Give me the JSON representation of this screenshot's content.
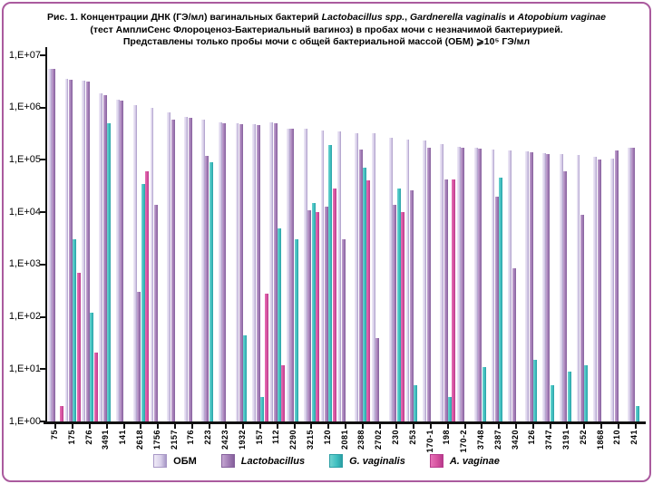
{
  "title": {
    "line1_pre": "Рис. 1. Концентрации ДНК (ГЭ/мл) вагинальных бактерий ",
    "species1": "Lactobacillus spp.",
    "sep1": ", ",
    "species2": "Gardnerella vaginalis",
    "sep2": " и ",
    "species3": "Atopobium vaginae",
    "line2": "(тест АмплиСенс Флороценоз-Бактериальный вагиноз) в пробах мочи с незначимой бактериурией.",
    "line3": "Представлены только пробы мочи с общей бактериальной массой (ОБМ) ⩾10⁵ ГЭ/мл"
  },
  "colors": {
    "obm_light": "#efeaf7",
    "obm": "#d9d0ea",
    "obm_dark": "#a898c6",
    "lacto_light": "#c4a6d2",
    "lacto": "#a27cb5",
    "lacto_dark": "#85609c",
    "gvag_light": "#6fd2cf",
    "gvag": "#3fc0c0",
    "gvag_dark": "#2b9fa4",
    "avag_light": "#e670b6",
    "avag": "#d6529f",
    "avag_dark": "#b83a8c",
    "axis": "#111111",
    "frame_border": "#aa5a9e"
  },
  "chart_data": {
    "type": "bar",
    "y_scale": "log10",
    "ylim": [
      1,
      10000000
    ],
    "grid": false,
    "legend_position": "bottom",
    "y_tick_labels": [
      "1,E+00",
      "1,E+01",
      "1,E+02",
      "1,E+03",
      "1,E+04",
      "1,E+05",
      "1,E+06",
      "1,E+07"
    ],
    "categories": [
      "75",
      "175",
      "276",
      "3491",
      "141",
      "2618",
      "1756",
      "2157",
      "176",
      "223",
      "2423",
      "1932",
      "157",
      "112",
      "2290",
      "3215",
      "120",
      "2081",
      "2388",
      "2702",
      "230",
      "253",
      "170-1",
      "198",
      "170-2",
      "3748",
      "2387",
      "3420",
      "126",
      "3747",
      "3191",
      "252",
      "1868",
      "210",
      "241"
    ],
    "series": [
      {
        "name": "ОБМ",
        "key": "obm",
        "values": [
          5500000.0,
          3500000.0,
          3300000.0,
          1900000.0,
          1400000.0,
          1100000.0,
          1000000.0,
          800000.0,
          660000.0,
          600000.0,
          520000.0,
          500000.0,
          490000.0,
          530000.0,
          400000.0,
          390000.0,
          370000.0,
          350000.0,
          330000.0,
          320000.0,
          270000.0,
          250000.0,
          240000.0,
          200000.0,
          175000.0,
          170000.0,
          160000.0,
          150000.0,
          145000.0,
          135000.0,
          130000.0,
          125000.0,
          115000.0,
          105000.0,
          170000.0
        ]
      },
      {
        "name": "Lactobacillus",
        "key": "lacto",
        "values": [
          5400000.0,
          3400000.0,
          3200000.0,
          1700000.0,
          1350000.0,
          300.0,
          14000.0,
          600000.0,
          640000.0,
          120000.0,
          500000.0,
          480000.0,
          470000.0,
          510000.0,
          390000.0,
          11000.0,
          13000.0,
          3000.0,
          160000.0,
          40.0,
          14000.0,
          26000.0,
          170000.0,
          43000.0,
          170000.0,
          165000.0,
          20000.0,
          850.0,
          140000.0,
          130000.0,
          60000.0,
          9000.0,
          100000.0,
          150000.0,
          170000.0
        ]
      },
      {
        "name": "G. vaginalis",
        "key": "gvag",
        "values": [
          null,
          3000.0,
          120.0,
          500000.0,
          null,
          35000.0,
          null,
          null,
          null,
          90000.0,
          null,
          45.0,
          3.0,
          5000.0,
          3000.0,
          15000.0,
          190000.0,
          null,
          70000.0,
          null,
          29000.0,
          5.0,
          null,
          3.0,
          null,
          11.0,
          45000.0,
          null,
          15.0,
          5.0,
          9.0,
          12.0,
          null,
          null,
          2.0
        ]
      },
      {
        "name": "A. vaginae",
        "key": "avag",
        "values": [
          2.0,
          700.0,
          21.0,
          null,
          null,
          60000.0,
          null,
          null,
          null,
          null,
          null,
          null,
          280.0,
          12.0,
          null,
          10000.0,
          29000.0,
          null,
          40000.0,
          null,
          10000.0,
          null,
          null,
          42000.0,
          null,
          null,
          null,
          null,
          null,
          null,
          null,
          null,
          null,
          null,
          null
        ]
      }
    ],
    "legend": [
      {
        "label": "ОБМ",
        "key": "obm",
        "italic": false
      },
      {
        "label": "Lactobacillus",
        "key": "lacto",
        "italic": true
      },
      {
        "label": "G. vaginalis",
        "key": "gvag",
        "italic": true
      },
      {
        "label": "A. vaginae",
        "key": "avag",
        "italic": true
      }
    ]
  }
}
